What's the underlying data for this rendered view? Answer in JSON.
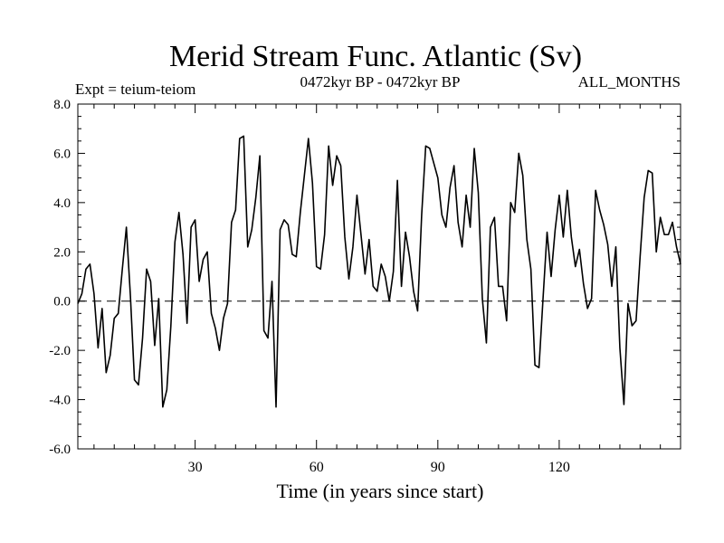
{
  "chart_data": {
    "type": "line",
    "title": "Merid Stream Func. Atlantic (Sv)",
    "subtitle_left": "Expt = teium-teiom",
    "subtitle_center": "0472kyr BP - 0472kyr BP",
    "subtitle_right": "ALL_MONTHS",
    "xlabel": "Time (in years since start)",
    "ylabel": "",
    "xlim": [
      1,
      150
    ],
    "ylim": [
      -6.0,
      8.0
    ],
    "x_ticks": [
      30,
      60,
      90,
      120
    ],
    "x_tick_labels": [
      "30",
      "60",
      "90",
      "120"
    ],
    "y_ticks": [
      -6,
      -4,
      -2,
      0,
      2,
      4,
      6,
      8
    ],
    "y_tick_labels": [
      "-6.0",
      "-4.0",
      "-2.0",
      "0.0",
      "2.0",
      "4.0",
      "6.0",
      "8.0"
    ],
    "reference_line": 0.0,
    "grid": false,
    "series": [
      {
        "name": "Merid Stream Func. Atlantic",
        "x_start": 1,
        "x_step": 1,
        "values": [
          -0.1,
          0.3,
          1.3,
          1.5,
          0.3,
          -1.9,
          -0.3,
          -2.9,
          -2.2,
          -0.7,
          -0.5,
          1.3,
          3.0,
          0.2,
          -3.2,
          -3.4,
          -1.5,
          1.3,
          0.8,
          -1.8,
          0.1,
          -4.3,
          -3.6,
          -1.0,
          2.4,
          3.6,
          1.9,
          -0.9,
          3.0,
          3.3,
          0.8,
          1.7,
          2.0,
          -0.5,
          -1.1,
          -2.0,
          -0.7,
          -0.1,
          3.2,
          3.7,
          6.6,
          6.7,
          2.2,
          2.9,
          4.2,
          5.9,
          -1.2,
          -1.5,
          0.8,
          -4.3,
          2.9,
          3.3,
          3.1,
          1.9,
          1.8,
          3.6,
          5.1,
          6.6,
          4.8,
          1.4,
          1.3,
          2.7,
          6.3,
          4.7,
          5.9,
          5.5,
          2.6,
          0.9,
          2.2,
          4.3,
          2.7,
          1.1,
          2.5,
          0.6,
          0.4,
          1.5,
          1.0,
          0.0,
          1.2,
          4.9,
          0.6,
          2.8,
          1.8,
          0.4,
          -0.4,
          3.5,
          6.3,
          6.2,
          5.6,
          5.0,
          3.5,
          3.0,
          4.6,
          5.5,
          3.2,
          2.2,
          4.3,
          3.0,
          6.2,
          4.4,
          0.1,
          -1.7,
          3.0,
          3.4,
          0.6,
          0.6,
          -0.8,
          4.0,
          3.6,
          6.0,
          5.1,
          2.5,
          1.3,
          -2.6,
          -2.7,
          0.1,
          2.8,
          1.0,
          2.9,
          4.3,
          2.6,
          4.5,
          2.6,
          1.4,
          2.1,
          0.7,
          -0.3,
          0.1,
          4.5,
          3.7,
          3.1,
          2.3,
          0.6,
          2.2,
          -1.9,
          -4.2,
          -0.1,
          -1.0,
          -0.8,
          1.8,
          4.2,
          5.3,
          5.2,
          2.0,
          3.4,
          2.7,
          2.7,
          3.2,
          2.2,
          1.5
        ]
      }
    ],
    "line_color": "#000000",
    "reference_line_color": "#000000"
  }
}
